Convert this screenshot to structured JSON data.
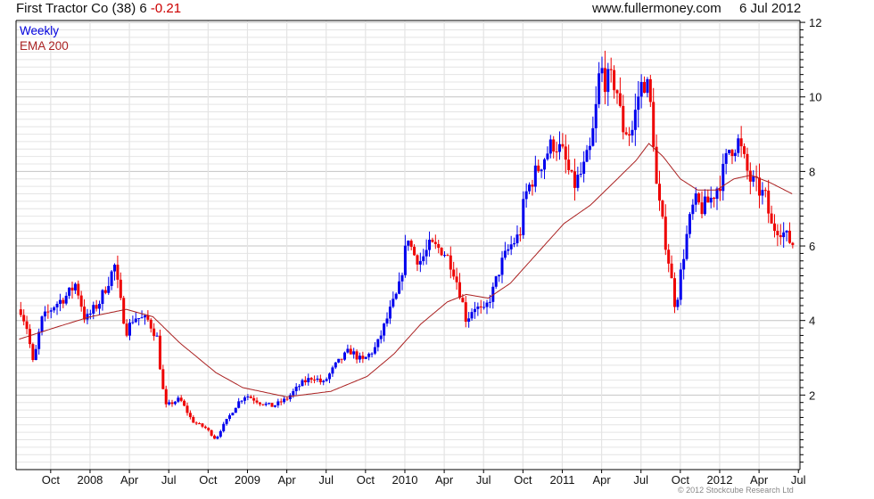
{
  "header": {
    "title": "First Tractor Co (38) 6",
    "change": "-0.21",
    "site": "www.fullermoney.com",
    "date": "6 Jul 2012"
  },
  "copyright": "© 2012 Stockcube Research Ltd",
  "chart_data": {
    "type": "candlestick",
    "title": "First Tractor Co (38) 6 -0.21",
    "legend": [
      "Weekly",
      "EMA 200"
    ],
    "legend_placement": "top-left",
    "colors": {
      "up": "#0000ee",
      "down": "#ee0000",
      "ema": "#aa2020",
      "grid": "#e4e4e4",
      "grid_major": "#c4c4c4"
    },
    "xlim": [
      2007.53,
      2012.51
    ],
    "ylim": [
      0,
      12.05
    ],
    "y_ticks": [
      2,
      4,
      6,
      8,
      10,
      12
    ],
    "x_ticks": [
      {
        "label": "Oct",
        "t": 2007.75
      },
      {
        "label": "2008",
        "t": 2008.0
      },
      {
        "label": "Apr",
        "t": 2008.25
      },
      {
        "label": "Jul",
        "t": 2008.5
      },
      {
        "label": "Oct",
        "t": 2008.75
      },
      {
        "label": "2009",
        "t": 2009.0
      },
      {
        "label": "Apr",
        "t": 2009.25
      },
      {
        "label": "Jul",
        "t": 2009.5
      },
      {
        "label": "Oct",
        "t": 2009.75
      },
      {
        "label": "2010",
        "t": 2010.0
      },
      {
        "label": "Apr",
        "t": 2010.25
      },
      {
        "label": "Jul",
        "t": 2010.5
      },
      {
        "label": "Oct",
        "t": 2010.75
      },
      {
        "label": "2011",
        "t": 2011.0
      },
      {
        "label": "Apr",
        "t": 2011.25
      },
      {
        "label": "Jul",
        "t": 2011.5
      },
      {
        "label": "Oct",
        "t": 2011.75
      },
      {
        "label": "2012",
        "t": 2012.0
      },
      {
        "label": "Apr",
        "t": 2012.25
      },
      {
        "label": "Jul",
        "t": 2012.5
      }
    ],
    "weekly_close_keypoints": [
      [
        2007.56,
        4.3
      ],
      [
        2007.6,
        3.8
      ],
      [
        2007.64,
        2.8
      ],
      [
        2007.69,
        4.0
      ],
      [
        2007.77,
        4.4
      ],
      [
        2007.86,
        4.7
      ],
      [
        2007.91,
        5.0
      ],
      [
        2007.97,
        4.0
      ],
      [
        2008.06,
        4.5
      ],
      [
        2008.16,
        5.5
      ],
      [
        2008.18,
        4.8
      ],
      [
        2008.23,
        3.7
      ],
      [
        2008.28,
        4.1
      ],
      [
        2008.37,
        4.0
      ],
      [
        2008.43,
        3.5
      ],
      [
        2008.45,
        2.5
      ],
      [
        2008.48,
        1.7
      ],
      [
        2008.57,
        1.9
      ],
      [
        2008.65,
        1.3
      ],
      [
        2008.74,
        1.1
      ],
      [
        2008.8,
        0.8
      ],
      [
        2008.82,
        1.0
      ],
      [
        2008.88,
        1.4
      ],
      [
        2008.94,
        1.8
      ],
      [
        2008.99,
        2.0
      ],
      [
        2009.08,
        1.8
      ],
      [
        2009.16,
        1.7
      ],
      [
        2009.25,
        1.9
      ],
      [
        2009.34,
        2.3
      ],
      [
        2009.42,
        2.5
      ],
      [
        2009.48,
        2.3
      ],
      [
        2009.56,
        2.8
      ],
      [
        2009.65,
        3.2
      ],
      [
        2009.73,
        2.9
      ],
      [
        2009.82,
        3.3
      ],
      [
        2009.9,
        4.2
      ],
      [
        2009.96,
        4.8
      ],
      [
        2010.02,
        6.3
      ],
      [
        2010.05,
        5.8
      ],
      [
        2010.1,
        5.6
      ],
      [
        2010.16,
        6.0
      ],
      [
        2010.24,
        5.9
      ],
      [
        2010.3,
        5.5
      ],
      [
        2010.36,
        4.6
      ],
      [
        2010.39,
        4.0
      ],
      [
        2010.44,
        4.4
      ],
      [
        2010.5,
        4.2
      ],
      [
        2010.56,
        4.8
      ],
      [
        2010.61,
        5.5
      ],
      [
        2010.67,
        6.0
      ],
      [
        2010.73,
        6.3
      ],
      [
        2010.76,
        7.3
      ],
      [
        2010.81,
        7.8
      ],
      [
        2010.9,
        8.5
      ],
      [
        2010.95,
        8.8
      ],
      [
        2011.01,
        8.4
      ],
      [
        2011.07,
        7.6
      ],
      [
        2011.13,
        8.0
      ],
      [
        2011.18,
        8.6
      ],
      [
        2011.21,
        9.5
      ],
      [
        2011.24,
        10.8
      ],
      [
        2011.28,
        10.4
      ],
      [
        2011.34,
        10.4
      ],
      [
        2011.38,
        9.2
      ],
      [
        2011.44,
        9.0
      ],
      [
        2011.49,
        10.2
      ],
      [
        2011.53,
        10.5
      ],
      [
        2011.57,
        9.5
      ],
      [
        2011.6,
        7.5
      ],
      [
        2011.64,
        6.5
      ],
      [
        2011.68,
        5.5
      ],
      [
        2011.72,
        4.3
      ],
      [
        2011.76,
        5.5
      ],
      [
        2011.8,
        6.5
      ],
      [
        2011.84,
        7.2
      ],
      [
        2011.89,
        7.0
      ],
      [
        2011.95,
        7.3
      ],
      [
        2012.01,
        7.8
      ],
      [
        2012.06,
        8.6
      ],
      [
        2012.12,
        8.8
      ],
      [
        2012.16,
        8.2
      ],
      [
        2012.19,
        7.8
      ],
      [
        2012.25,
        7.5
      ],
      [
        2012.29,
        7.3
      ],
      [
        2012.33,
        6.5
      ],
      [
        2012.38,
        6.5
      ],
      [
        2012.43,
        6.2
      ],
      [
        2012.48,
        6.0
      ]
    ],
    "ema200": [
      [
        2007.55,
        3.5
      ],
      [
        2007.77,
        3.8
      ],
      [
        2008.0,
        4.1
      ],
      [
        2008.23,
        4.3
      ],
      [
        2008.4,
        4.1
      ],
      [
        2008.57,
        3.4
      ],
      [
        2008.8,
        2.6
      ],
      [
        2008.97,
        2.2
      ],
      [
        2009.25,
        1.95
      ],
      [
        2009.53,
        2.1
      ],
      [
        2009.76,
        2.5
      ],
      [
        2009.93,
        3.1
      ],
      [
        2010.1,
        3.9
      ],
      [
        2010.27,
        4.5
      ],
      [
        2010.39,
        4.7
      ],
      [
        2010.53,
        4.6
      ],
      [
        2010.67,
        5.0
      ],
      [
        2010.84,
        5.8
      ],
      [
        2011.01,
        6.6
      ],
      [
        2011.18,
        7.1
      ],
      [
        2011.35,
        7.8
      ],
      [
        2011.47,
        8.3
      ],
      [
        2011.55,
        8.75
      ],
      [
        2011.64,
        8.4
      ],
      [
        2011.75,
        7.8
      ],
      [
        2011.86,
        7.5
      ],
      [
        2011.98,
        7.5
      ],
      [
        2012.09,
        7.8
      ],
      [
        2012.2,
        7.9
      ],
      [
        2012.32,
        7.7
      ],
      [
        2012.46,
        7.4
      ]
    ]
  }
}
